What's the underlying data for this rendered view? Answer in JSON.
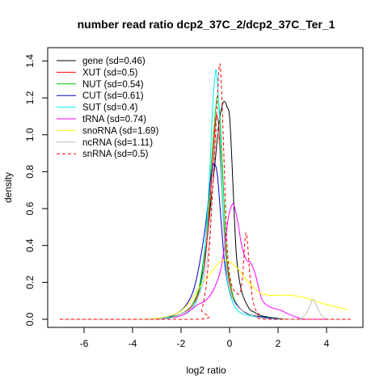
{
  "chart_data": {
    "type": "line",
    "title": "number read ratio dcp2_37C_2/dcp2_37C_Ter_1",
    "xlabel": "log2 ratio",
    "ylabel": "density",
    "xlim": [
      -7,
      5
    ],
    "ylim": [
      0,
      1.45
    ],
    "xticks": [
      -6,
      -4,
      -2,
      0,
      2,
      4
    ],
    "yticks": [
      0.0,
      0.2,
      0.4,
      0.6,
      0.8,
      1.0,
      1.2,
      1.4
    ],
    "xtick_labels": [
      "-6",
      "-4",
      "-2",
      "0",
      "2",
      "4"
    ],
    "ytick_labels": [
      "0.0",
      "0.2",
      "0.4",
      "0.6",
      "0.8",
      "1.0",
      "1.2",
      "1.4"
    ],
    "grid": false,
    "legend_position": "top-left",
    "series": [
      {
        "name": "gene (sd=0.46)",
        "color": "#000000",
        "dash": "solid",
        "points": [
          [
            -7,
            0
          ],
          [
            -3.5,
            0
          ],
          [
            -2.5,
            0.01
          ],
          [
            -2,
            0.03
          ],
          [
            -1.5,
            0.08
          ],
          [
            -1.2,
            0.2
          ],
          [
            -1,
            0.35
          ],
          [
            -0.8,
            0.6
          ],
          [
            -0.6,
            0.85
          ],
          [
            -0.45,
            1.05
          ],
          [
            -0.3,
            1.16
          ],
          [
            -0.2,
            1.18
          ],
          [
            -0.1,
            1.15
          ],
          [
            0,
            1.1
          ],
          [
            0.1,
            0.85
          ],
          [
            0.2,
            0.55
          ],
          [
            0.3,
            0.32
          ],
          [
            0.5,
            0.15
          ],
          [
            0.8,
            0.06
          ],
          [
            1,
            0.04
          ],
          [
            1.3,
            0.02
          ],
          [
            2,
            0.005
          ],
          [
            2.5,
            0
          ],
          [
            5,
            0
          ]
        ]
      },
      {
        "name": "XUT (sd=0.5)",
        "color": "#ff0000",
        "dash": "solid",
        "points": [
          [
            -7,
            0
          ],
          [
            -3.5,
            0
          ],
          [
            -2.5,
            0.01
          ],
          [
            -2,
            0.03
          ],
          [
            -1.5,
            0.08
          ],
          [
            -1.2,
            0.18
          ],
          [
            -1,
            0.33
          ],
          [
            -0.8,
            0.65
          ],
          [
            -0.65,
            0.95
          ],
          [
            -0.55,
            1.1
          ],
          [
            -0.45,
            1.05
          ],
          [
            -0.35,
            0.8
          ],
          [
            -0.25,
            0.55
          ],
          [
            -0.1,
            0.3
          ],
          [
            0,
            0.2
          ],
          [
            0.2,
            0.1
          ],
          [
            0.5,
            0.05
          ],
          [
            1,
            0.02
          ],
          [
            2,
            0.005
          ],
          [
            2.5,
            0
          ],
          [
            5,
            0
          ]
        ]
      },
      {
        "name": "NUT (sd=0.54)",
        "color": "#00cc00",
        "dash": "solid",
        "points": [
          [
            -7,
            0
          ],
          [
            -3.5,
            0
          ],
          [
            -2.5,
            0.01
          ],
          [
            -2,
            0.03
          ],
          [
            -1.6,
            0.07
          ],
          [
            -1.3,
            0.15
          ],
          [
            -1.1,
            0.3
          ],
          [
            -0.9,
            0.55
          ],
          [
            -0.75,
            0.85
          ],
          [
            -0.6,
            1.1
          ],
          [
            -0.5,
            1.21
          ],
          [
            -0.4,
            1.1
          ],
          [
            -0.3,
            0.85
          ],
          [
            -0.2,
            0.55
          ],
          [
            -0.1,
            0.32
          ],
          [
            0.1,
            0.15
          ],
          [
            0.3,
            0.08
          ],
          [
            0.6,
            0.04
          ],
          [
            1,
            0.02
          ],
          [
            2,
            0.005
          ],
          [
            2.5,
            0
          ],
          [
            5,
            0
          ]
        ]
      },
      {
        "name": "CUT (sd=0.61)",
        "color": "#0000cc",
        "dash": "solid",
        "points": [
          [
            -7,
            0
          ],
          [
            -3.5,
            0
          ],
          [
            -2.6,
            0.01
          ],
          [
            -2.2,
            0.03
          ],
          [
            -1.9,
            0.06
          ],
          [
            -1.6,
            0.12
          ],
          [
            -1.4,
            0.2
          ],
          [
            -1.2,
            0.33
          ],
          [
            -1,
            0.5
          ],
          [
            -0.85,
            0.68
          ],
          [
            -0.7,
            0.83
          ],
          [
            -0.6,
            0.84
          ],
          [
            -0.5,
            0.78
          ],
          [
            -0.4,
            0.62
          ],
          [
            -0.3,
            0.45
          ],
          [
            -0.2,
            0.3
          ],
          [
            0,
            0.15
          ],
          [
            0.3,
            0.08
          ],
          [
            0.6,
            0.04
          ],
          [
            1,
            0.02
          ],
          [
            1.5,
            0.01
          ],
          [
            2,
            0.003
          ],
          [
            2.5,
            0
          ],
          [
            5,
            0
          ]
        ]
      },
      {
        "name": "SUT (sd=0.4)",
        "color": "#00eeee",
        "dash": "solid",
        "points": [
          [
            -7,
            0
          ],
          [
            -3.5,
            0
          ],
          [
            -2.5,
            0.01
          ],
          [
            -2,
            0.02
          ],
          [
            -1.6,
            0.05
          ],
          [
            -1.3,
            0.12
          ],
          [
            -1.1,
            0.25
          ],
          [
            -0.95,
            0.5
          ],
          [
            -0.8,
            0.85
          ],
          [
            -0.7,
            1.15
          ],
          [
            -0.6,
            1.32
          ],
          [
            -0.55,
            1.35
          ],
          [
            -0.5,
            1.28
          ],
          [
            -0.4,
            1.05
          ],
          [
            -0.3,
            0.7
          ],
          [
            -0.2,
            0.4
          ],
          [
            -0.1,
            0.22
          ],
          [
            0.1,
            0.1
          ],
          [
            0.4,
            0.04
          ],
          [
            0.8,
            0.02
          ],
          [
            1.5,
            0.005
          ],
          [
            2,
            0
          ],
          [
            5,
            0
          ]
        ]
      },
      {
        "name": "tRNA (sd=0.74)",
        "color": "#ff00ff",
        "dash": "solid",
        "points": [
          [
            -7,
            0
          ],
          [
            -3.5,
            0
          ],
          [
            -2.5,
            0.005
          ],
          [
            -2,
            0.02
          ],
          [
            -1.6,
            0.05
          ],
          [
            -1.3,
            0.08
          ],
          [
            -1,
            0.1
          ],
          [
            -0.7,
            0.15
          ],
          [
            -0.4,
            0.25
          ],
          [
            -0.2,
            0.4
          ],
          [
            -0.05,
            0.55
          ],
          [
            0.1,
            0.62
          ],
          [
            0.2,
            0.61
          ],
          [
            0.35,
            0.52
          ],
          [
            0.5,
            0.4
          ],
          [
            0.7,
            0.32
          ],
          [
            0.85,
            0.31
          ],
          [
            1.05,
            0.25
          ],
          [
            1.3,
            0.12
          ],
          [
            1.5,
            0.08
          ],
          [
            1.8,
            0.06
          ],
          [
            2.1,
            0.05
          ],
          [
            2.4,
            0.03
          ],
          [
            2.8,
            0.01
          ],
          [
            3.2,
            0
          ],
          [
            5,
            0
          ]
        ]
      },
      {
        "name": "snoRNA (sd=1.69)",
        "color": "#ffff00",
        "dash": "solid",
        "points": [
          [
            -7,
            0
          ],
          [
            -4,
            0
          ],
          [
            -3,
            0.005
          ],
          [
            -2.2,
            0.03
          ],
          [
            -1.8,
            0.07
          ],
          [
            -1.5,
            0.12
          ],
          [
            -1.2,
            0.18
          ],
          [
            -0.9,
            0.23
          ],
          [
            -0.6,
            0.28
          ],
          [
            -0.3,
            0.32
          ],
          [
            0,
            0.31
          ],
          [
            0.3,
            0.28
          ],
          [
            0.6,
            0.23
          ],
          [
            1,
            0.17
          ],
          [
            1.3,
            0.14
          ],
          [
            1.6,
            0.13
          ],
          [
            2,
            0.13
          ],
          [
            2.5,
            0.13
          ],
          [
            3,
            0.12
          ],
          [
            3.5,
            0.1
          ],
          [
            4,
            0.08
          ],
          [
            4.5,
            0.065
          ],
          [
            4.9,
            0.05
          ]
        ]
      },
      {
        "name": "ncRNA (sd=1.11)",
        "color": "#bebebe",
        "dash": "solid",
        "points": [
          [
            -7,
            0
          ],
          [
            -3.5,
            0
          ],
          [
            -2.5,
            0.005
          ],
          [
            -2,
            0.03
          ],
          [
            -1.6,
            0.07
          ],
          [
            -1.3,
            0.12
          ],
          [
            -1,
            0.25
          ],
          [
            -0.8,
            0.5
          ],
          [
            -0.65,
            0.85
          ],
          [
            -0.55,
            1.02
          ],
          [
            -0.45,
            0.98
          ],
          [
            -0.35,
            0.75
          ],
          [
            -0.25,
            0.5
          ],
          [
            -0.1,
            0.25
          ],
          [
            0.1,
            0.12
          ],
          [
            0.4,
            0.06
          ],
          [
            0.8,
            0.03
          ],
          [
            1.2,
            0.01
          ],
          [
            2,
            0
          ],
          [
            2.8,
            0
          ],
          [
            3.1,
            0.02
          ],
          [
            3.3,
            0.07
          ],
          [
            3.45,
            0.11
          ],
          [
            3.6,
            0.07
          ],
          [
            3.8,
            0.02
          ],
          [
            4.1,
            0
          ],
          [
            5,
            0
          ]
        ]
      },
      {
        "name": "snRNA (sd=0.5)",
        "color": "#ff0000",
        "dash": "dashed",
        "points": [
          [
            -7,
            0
          ],
          [
            -1.3,
            0
          ],
          [
            -1.15,
            0.05
          ],
          [
            -1.0,
            0.15
          ],
          [
            -0.85,
            0.35
          ],
          [
            -0.7,
            0.7
          ],
          [
            -0.6,
            0.95
          ],
          [
            -0.5,
            1.2
          ],
          [
            -0.42,
            1.38
          ],
          [
            -0.35,
            1.3
          ],
          [
            -0.25,
            0.95
          ],
          [
            -0.15,
            0.55
          ],
          [
            -0.05,
            0.3
          ],
          [
            0.1,
            0.18
          ],
          [
            0.3,
            0.14
          ],
          [
            0.45,
            0.15
          ],
          [
            0.55,
            0.25
          ],
          [
            0.62,
            0.4
          ],
          [
            0.68,
            0.47
          ],
          [
            0.75,
            0.4
          ],
          [
            0.85,
            0.22
          ],
          [
            1,
            0.08
          ],
          [
            1.2,
            0.03
          ],
          [
            1.5,
            0
          ],
          [
            5,
            0
          ]
        ]
      }
    ]
  }
}
